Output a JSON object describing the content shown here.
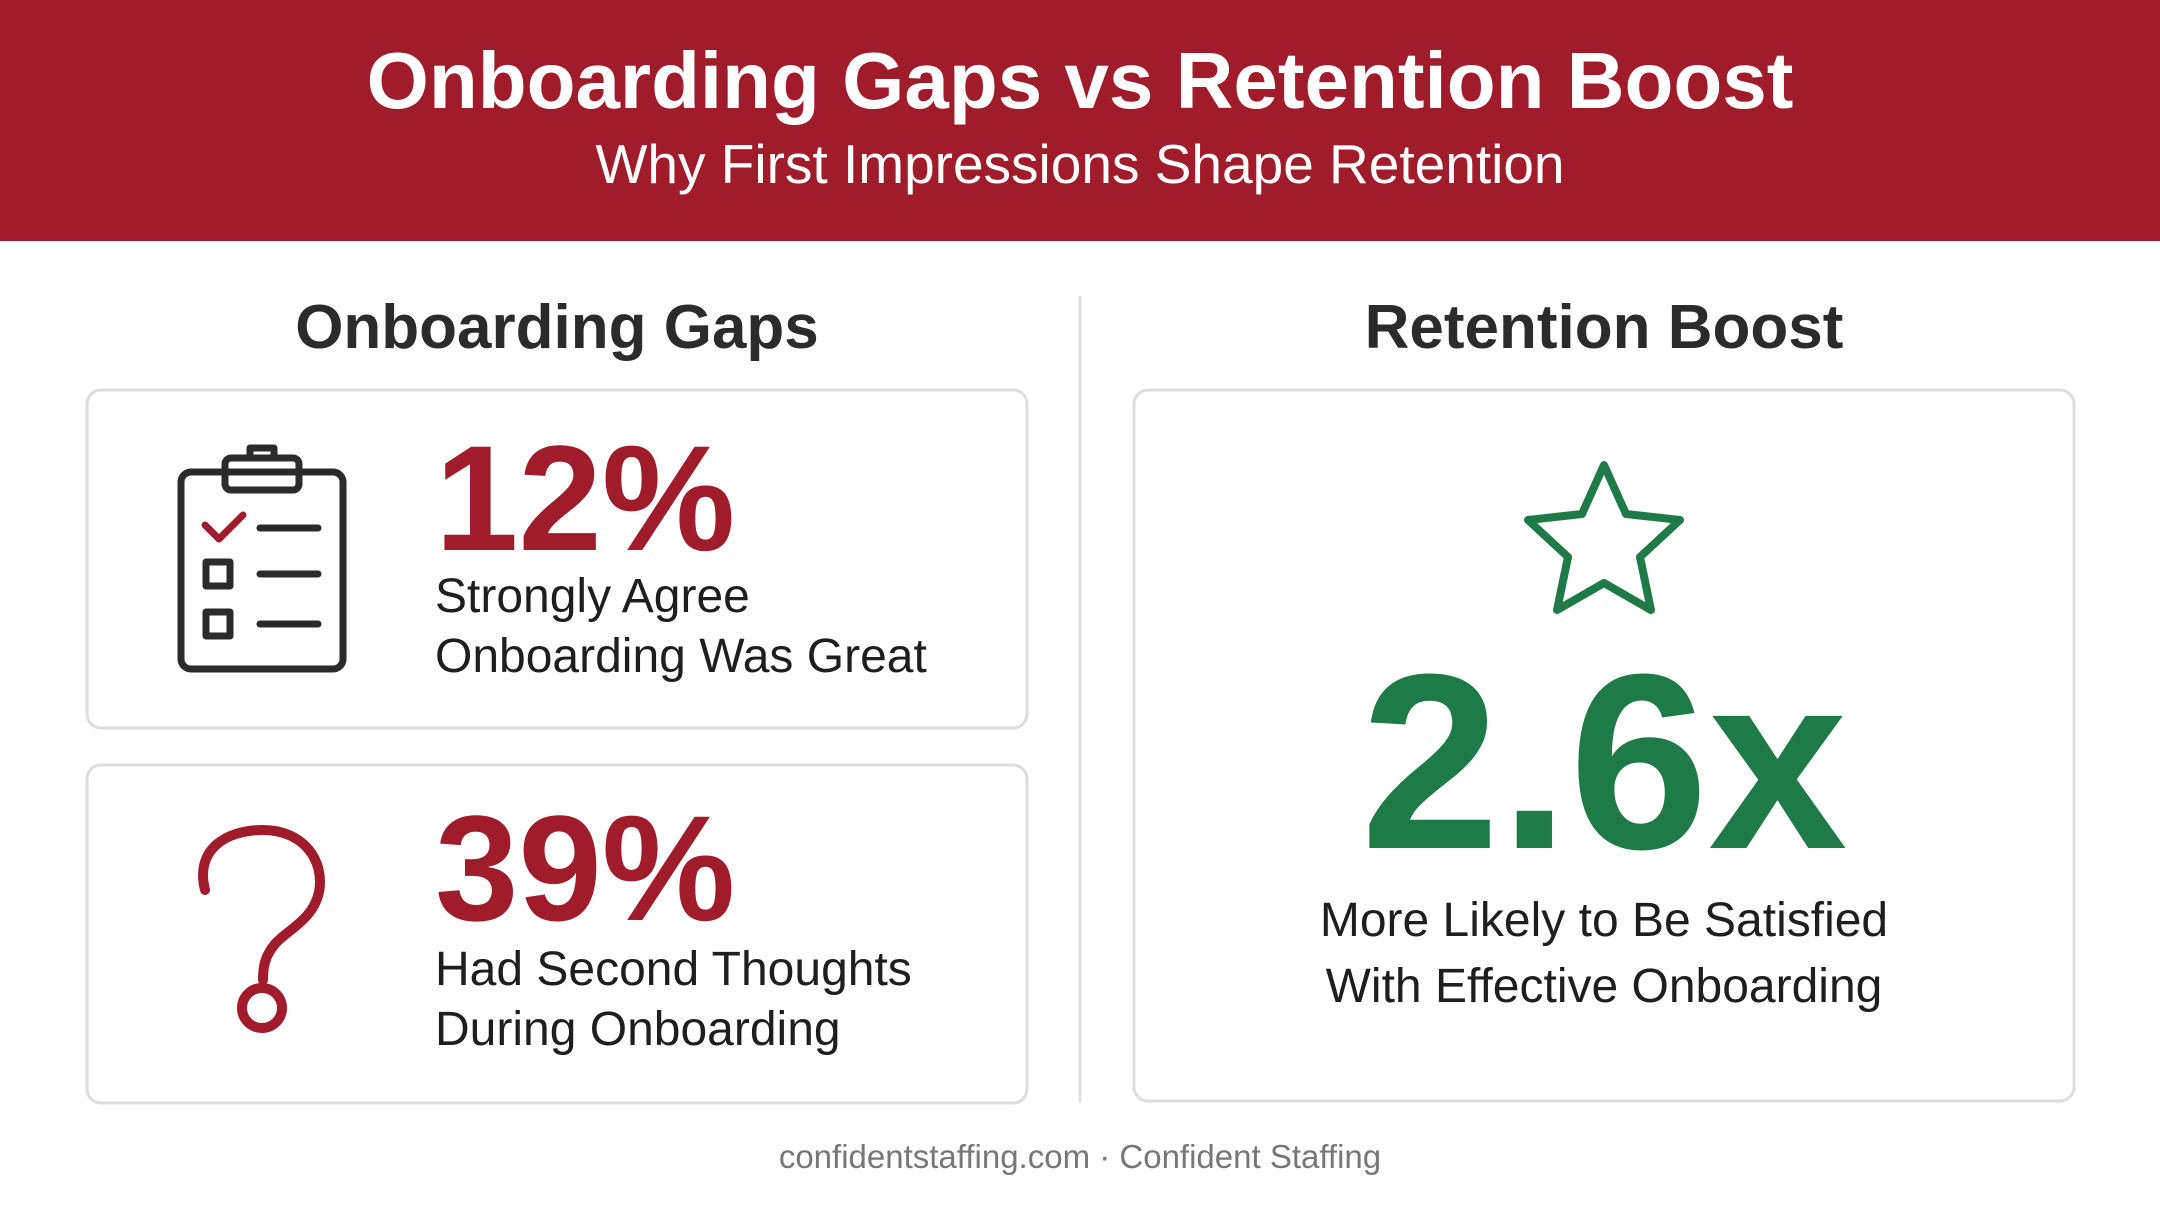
{
  "header": {
    "title": "Onboarding Gaps vs Retention Boost",
    "subtitle": "Why First Impressions Shape Retention"
  },
  "left": {
    "heading": "Onboarding Gaps",
    "cards": [
      {
        "value": "12%",
        "lines": [
          "Strongly Agree",
          "Onboarding Was Great"
        ]
      },
      {
        "value": "39%",
        "lines": [
          "Had Second Thoughts",
          "During Onboarding"
        ]
      }
    ]
  },
  "right": {
    "heading": "Retention Boost",
    "value": "2.6x",
    "lines": [
      "More Likely to Be Satisfied",
      "With Effective Onboarding"
    ]
  },
  "footer": "confidentstaffing.com · Confident Staffing"
}
